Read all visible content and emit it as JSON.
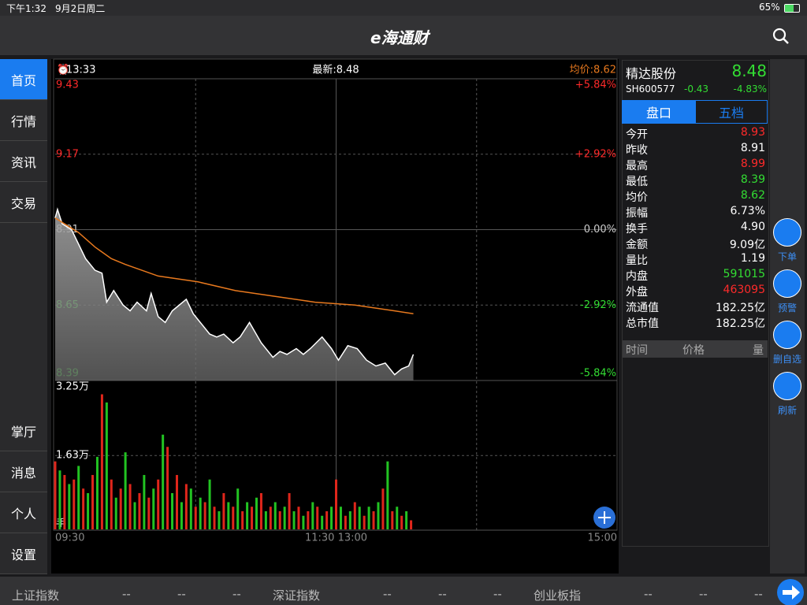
{
  "status_bar": {
    "time": "下午1:32",
    "date": "9月2日周二",
    "battery": "65%"
  },
  "header": {
    "title": "e海通财"
  },
  "sidebar": {
    "top": [
      "首页",
      "行情",
      "资讯",
      "交易"
    ],
    "bottom": [
      "掌厅",
      "消息",
      "个人",
      "设置"
    ]
  },
  "chart_data": [
    {
      "type": "line",
      "time": "13:33",
      "latest": "最新:8.48",
      "average": "均价:8.62",
      "xlim": [
        0,
        240
      ],
      "ylim": [
        8.39,
        9.43
      ],
      "yticks": [
        9.43,
        9.17,
        8.91,
        8.65,
        8.39
      ],
      "y2lim": [
        -5.84,
        5.84
      ],
      "y2ticks": [
        {
          "value": 5.84,
          "label": "+5.84%"
        },
        {
          "value": 2.92,
          "label": "+2.92%"
        },
        {
          "value": 0,
          "label": "0.00%"
        },
        {
          "value": -2.92,
          "label": "-2.92%"
        },
        {
          "value": -5.84,
          "label": "-5.84%"
        }
      ],
      "grid": true,
      "area": true,
      "up_color": "#ff2a2a",
      "down_color": "#33dd33",
      "flat_color": "#cccccc",
      "series": [
        {
          "color": "#ffffff",
          "x": [
            0,
            1,
            3,
            7,
            10,
            13,
            17,
            20,
            22,
            25,
            29,
            32,
            35,
            39,
            41,
            44,
            47,
            50,
            53,
            56,
            59,
            62,
            66,
            69,
            72,
            76,
            79,
            83,
            88,
            93,
            96,
            99,
            103,
            106,
            109,
            114,
            118,
            121,
            125,
            129,
            133,
            137,
            141,
            145,
            148,
            151,
            153
          ],
          "values": [
            8.95,
            8.98,
            8.93,
            8.91,
            8.86,
            8.81,
            8.77,
            8.76,
            8.66,
            8.7,
            8.65,
            8.63,
            8.66,
            8.63,
            8.69,
            8.61,
            8.59,
            8.63,
            8.65,
            8.67,
            8.62,
            8.59,
            8.55,
            8.54,
            8.55,
            8.52,
            8.54,
            8.59,
            8.52,
            8.47,
            8.49,
            8.48,
            8.5,
            8.48,
            8.5,
            8.54,
            8.5,
            8.46,
            8.51,
            8.5,
            8.46,
            8.44,
            8.45,
            8.41,
            8.43,
            8.44,
            8.48
          ]
        },
        {
          "color": "#e8791e",
          "x": [
            0,
            10,
            17,
            24,
            30,
            44,
            61,
            77,
            94,
            111,
            128,
            145,
            153
          ],
          "values": [
            8.95,
            8.9,
            8.85,
            8.81,
            8.79,
            8.75,
            8.73,
            8.7,
            8.68,
            8.66,
            8.65,
            8.63,
            8.62
          ]
        }
      ]
    },
    {
      "type": "bar",
      "unit": "手",
      "xlim": [
        0,
        240
      ],
      "xticks": [
        {
          "value": 0,
          "label": "09:30"
        },
        {
          "value": 120,
          "label": "11:30 13:00"
        },
        {
          "value": 240,
          "label": "15:00"
        }
      ],
      "ylim": [
        0,
        3.25
      ],
      "yticks": [
        {
          "value": 3.25,
          "label": "3.25万"
        },
        {
          "value": 1.63,
          "label": "1.63万"
        }
      ],
      "colors": [
        "#e0261b",
        "#22c322"
      ],
      "x": [
        0,
        2,
        4,
        6,
        8,
        10,
        12,
        14,
        16,
        18,
        20,
        22,
        24,
        26,
        28,
        30,
        32,
        34,
        36,
        38,
        40,
        42,
        44,
        46,
        48,
        50,
        52,
        54,
        56,
        58,
        60,
        62,
        64,
        66,
        68,
        70,
        72,
        74,
        76,
        78,
        80,
        82,
        84,
        86,
        88,
        90,
        92,
        94,
        96,
        98,
        100,
        102,
        104,
        106,
        108,
        110,
        112,
        114,
        116,
        118,
        120,
        122,
        124,
        126,
        128,
        130,
        132,
        134,
        136,
        138,
        140,
        142,
        144,
        146,
        148,
        150,
        152
      ],
      "values": [
        1.5,
        1.3,
        1.2,
        1.0,
        1.1,
        1.4,
        0.9,
        0.8,
        1.2,
        1.6,
        2.98,
        2.8,
        1.1,
        0.7,
        0.9,
        1.7,
        1.0,
        0.6,
        0.8,
        1.2,
        0.7,
        0.9,
        1.1,
        2.09,
        1.82,
        0.8,
        1.2,
        0.6,
        1.0,
        0.9,
        0.5,
        0.7,
        0.6,
        1.1,
        0.5,
        0.4,
        0.8,
        0.6,
        0.5,
        0.9,
        0.4,
        0.6,
        0.5,
        0.7,
        0.8,
        0.4,
        0.5,
        0.6,
        0.4,
        0.5,
        0.8,
        0.4,
        0.5,
        0.3,
        0.4,
        0.6,
        0.5,
        0.3,
        0.4,
        0.5,
        1.1,
        0.5,
        0.3,
        0.4,
        0.6,
        0.5,
        0.3,
        0.5,
        0.4,
        0.6,
        0.9,
        1.5,
        0.4,
        0.5,
        0.3,
        0.4,
        0.2
      ]
    }
  ],
  "quote": {
    "name": "精达股份",
    "price": "8.48",
    "code": "SH600577",
    "change": "-0.43",
    "change_pct": "-4.83%",
    "tabs": [
      "盘口",
      "五档"
    ],
    "rows": [
      {
        "label": "今开",
        "value": "8.93",
        "color": "#ff2a2a"
      },
      {
        "label": "昨收",
        "value": "8.91",
        "color": "#ffffff"
      },
      {
        "label": "最高",
        "value": "8.99",
        "color": "#ff2a2a"
      },
      {
        "label": "最低",
        "value": "8.39",
        "color": "#33dd33"
      },
      {
        "label": "均价",
        "value": "8.62",
        "color": "#33dd33"
      },
      {
        "label": "振幅",
        "value": "6.73%",
        "color": "#ffffff"
      },
      {
        "label": "换手",
        "value": "4.90",
        "color": "#ffffff"
      },
      {
        "label": "金额",
        "value": "9.09亿",
        "color": "#ffffff"
      },
      {
        "label": "量比",
        "value": "1.19",
        "color": "#ffffff"
      },
      {
        "label": "内盘",
        "value": "591015",
        "color": "#33dd33"
      },
      {
        "label": "外盘",
        "value": "463095",
        "color": "#ff2a2a"
      },
      {
        "label": "流通值",
        "value": "182.25亿",
        "color": "#ffffff"
      },
      {
        "label": "总市值",
        "value": "182.25亿",
        "color": "#ffffff"
      }
    ],
    "trade_headers": [
      "时间",
      "价格",
      "量"
    ]
  },
  "actions": [
    "下单",
    "预警",
    "删自选",
    "刷新"
  ],
  "index_bar": [
    {
      "name": "上证指数",
      "values": [
        "--",
        "--",
        "--"
      ]
    },
    {
      "name": "深证指数",
      "values": [
        "--",
        "--",
        "--"
      ]
    },
    {
      "name": "创业板指",
      "values": [
        "--",
        "--",
        "--"
      ]
    }
  ]
}
